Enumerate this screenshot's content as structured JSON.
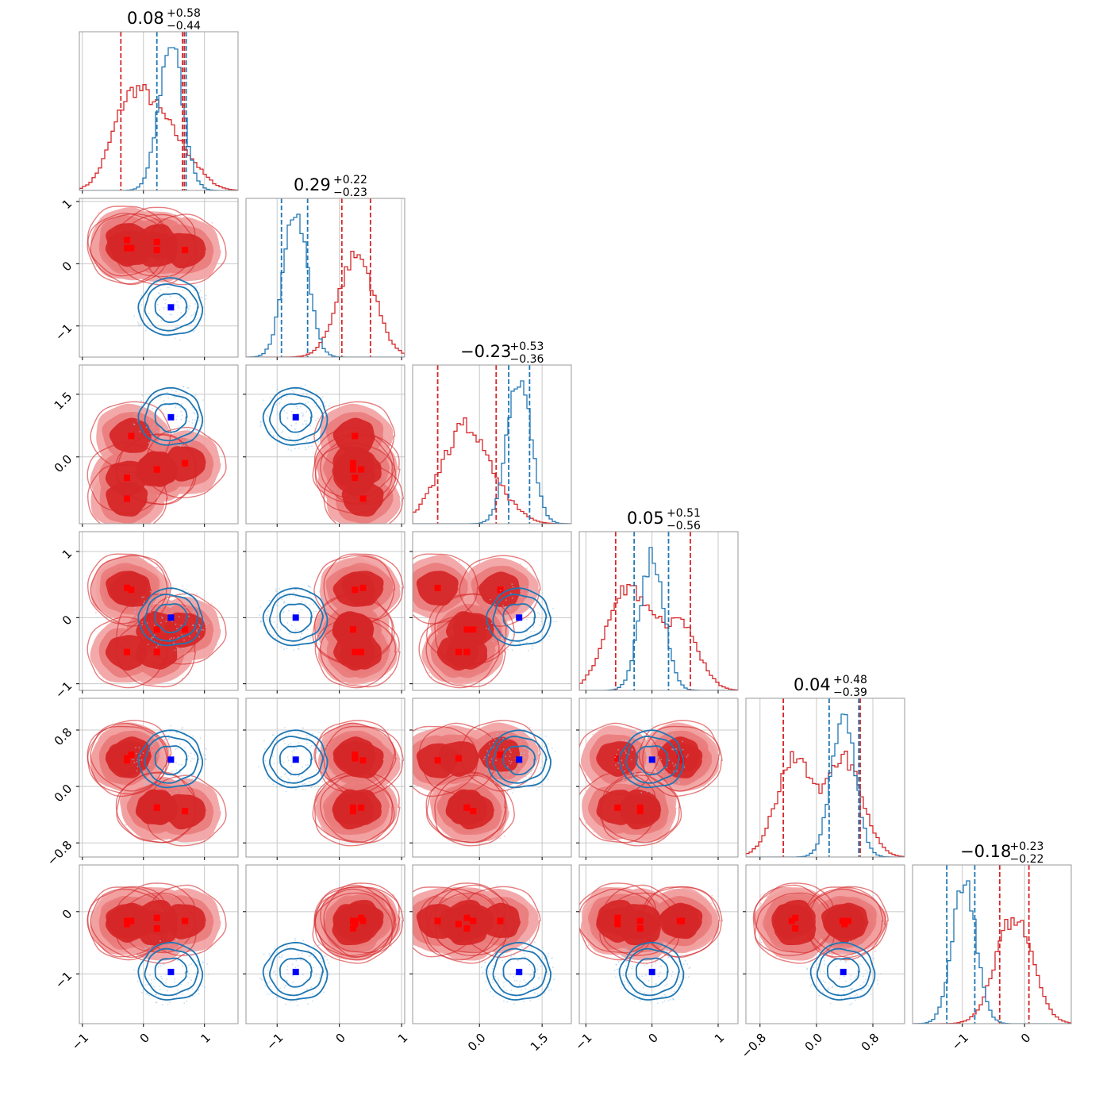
{
  "chart_data": {
    "type": "corner",
    "dimensions": 6,
    "series_colors": {
      "red": "#d62728",
      "blue": "#1f77b4",
      "marker_blue": "#0000ff",
      "marker_red": "#ff0000"
    },
    "titles": [
      {
        "median": "0.08",
        "plus": "+0.58",
        "minus": "−0.44"
      },
      {
        "median": "0.29",
        "plus": "+0.22",
        "minus": "−0.23"
      },
      {
        "median": "−0.23",
        "plus": "+0.53",
        "minus": "−0.36"
      },
      {
        "median": "0.05",
        "plus": "+0.51",
        "minus": "−0.56"
      },
      {
        "median": "0.04",
        "plus": "+0.48",
        "minus": "−0.39"
      },
      {
        "median": "−0.18",
        "plus": "+0.23",
        "minus": "−0.22"
      }
    ],
    "axes": [
      {
        "range": [
          -1.05,
          1.55
        ],
        "ticks": [
          -1,
          0,
          1
        ],
        "labels": [
          "−1",
          "0",
          "1"
        ]
      },
      {
        "range": [
          -1.5,
          1.05
        ],
        "ticks": [
          -1,
          0,
          1
        ],
        "labels": [
          "−1",
          "0",
          "1"
        ]
      },
      {
        "range": [
          -1.6,
          2.2
        ],
        "ticks": [
          0,
          1.5
        ],
        "labels": [
          "0.0",
          "1.5"
        ]
      },
      {
        "range": [
          -1.1,
          1.3
        ],
        "ticks": [
          -1,
          0,
          1
        ],
        "labels": [
          "−1",
          "0",
          "1"
        ]
      },
      {
        "range": [
          -1.0,
          1.25
        ],
        "ticks": [
          -0.8,
          0,
          0.8
        ],
        "labels": [
          "−0.8",
          "0.0",
          "0.8"
        ]
      },
      {
        "range": [
          -1.8,
          0.75
        ],
        "ticks": [
          -1,
          0
        ],
        "labels": [
          "−1",
          "0"
        ]
      }
    ],
    "red_modes": [
      [
        -0.27,
        0.38,
        -1.0,
        0.45,
        0.37,
        -0.15
      ],
      [
        -0.2,
        0.25,
        0.5,
        0.42,
        0.45,
        -0.15
      ],
      [
        0.22,
        0.22,
        -0.3,
        -0.18,
        -0.3,
        -0.27
      ],
      [
        0.68,
        0.22,
        -0.15,
        -0.18,
        -0.35,
        -0.15
      ],
      [
        -0.27,
        0.25,
        -0.5,
        -0.52,
        0.4,
        -0.2
      ],
      [
        0.22,
        0.35,
        -0.3,
        -0.52,
        -0.3,
        -0.1
      ]
    ],
    "blue_point": [
      0.45,
      -0.7,
      0.95,
      0.0,
      0.38,
      -0.97
    ],
    "diag": [
      {
        "red_lines": [
          -0.37,
          0.64,
          0.67
        ],
        "blue_lines": [
          0.22,
          0.7
        ]
      },
      {
        "red_lines": [
          0.04,
          0.5
        ],
        "blue_lines": [
          -0.93,
          -0.51
        ]
      },
      {
        "red_lines": [
          -1.0,
          0.4
        ],
        "blue_lines": [
          0.7,
          1.2
        ]
      },
      {
        "red_lines": [
          -0.55,
          0.58
        ],
        "blue_lines": [
          -0.27,
          0.25
        ]
      },
      {
        "red_lines": [
          -0.47,
          0.62
        ],
        "blue_lines": [
          0.18,
          0.6
        ]
      },
      {
        "red_lines": [
          -0.4,
          0.07
        ],
        "blue_lines": [
          -1.25,
          -0.8
        ]
      }
    ]
  }
}
